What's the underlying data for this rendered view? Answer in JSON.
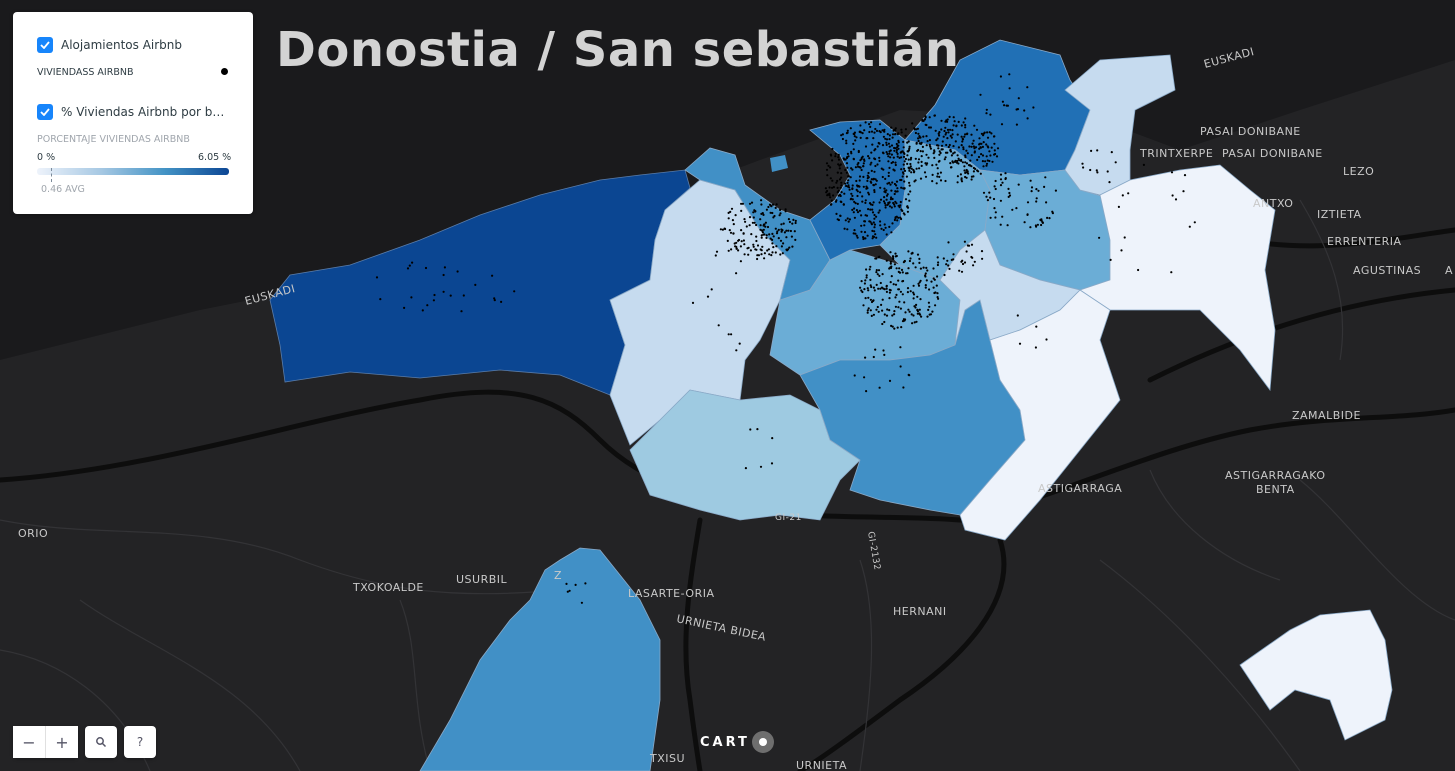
{
  "title": "Donostia / San sebastián",
  "legend": {
    "layer1": {
      "title": "Alojamientos Airbnb",
      "subtitle": "VIVIENDASS AIRBNB",
      "checked": true
    },
    "layer2": {
      "title": "% Viviendas Airbnb por bar...",
      "subtitle": "PORCENTAJE VIVIENDAS AIRBNB",
      "min": "0 %",
      "max": "6.05 %",
      "avg": "0.46 AVG",
      "checked": true
    },
    "ramp_colors": [
      "#eef3fb",
      "#a6c8e3",
      "#4393c5",
      "#0c4694"
    ]
  },
  "places": {
    "euskadi_top": "EUSKADI",
    "pasai_doni_1": "PASAI DONIBANE",
    "trintxerpe": "TRINTXERPE",
    "pasai_doni_2": "PASAI DONIBANE",
    "lezo": "LEZO",
    "antxo": "ANTXO",
    "iztieta": "IZTIETA",
    "errenteria": "ERRENTERIA",
    "agustinas": "AGUSTINAS",
    "a": "A",
    "zamalbide": "ZAMALBIDE",
    "astigarraga": "ASTIGARRAGA",
    "astigarragako": "ASTIGARRAGAKO",
    "benta": "BENTA",
    "orio": "ORIO",
    "txokoalde": "TXOKOALDE",
    "usurbil": "USURBIL",
    "z": "Z",
    "lasarte": "LASARTE-ORIA",
    "urnieta_bidea": "URNIETA BIDEA",
    "hernani": "HERNANI",
    "txisu": "TXISU",
    "urnieta": "URNIETA",
    "euskadi_left": "EUSKADI",
    "gi21": "GI-21",
    "gi2132": "GI-2132"
  },
  "controls": {
    "zoom_out": "−",
    "zoom_in": "+",
    "search_icon": "search-icon",
    "help": "?"
  },
  "attribution": {
    "logo_text": "CART"
  },
  "choropleth_colors": {
    "darkest": "#0b4692",
    "dark": "#2170b5",
    "mid": "#4190c6",
    "light_mid": "#6badd6",
    "light": "#9ecae1",
    "lighter": "#c6dbef",
    "lightest": "#eef3fb"
  }
}
